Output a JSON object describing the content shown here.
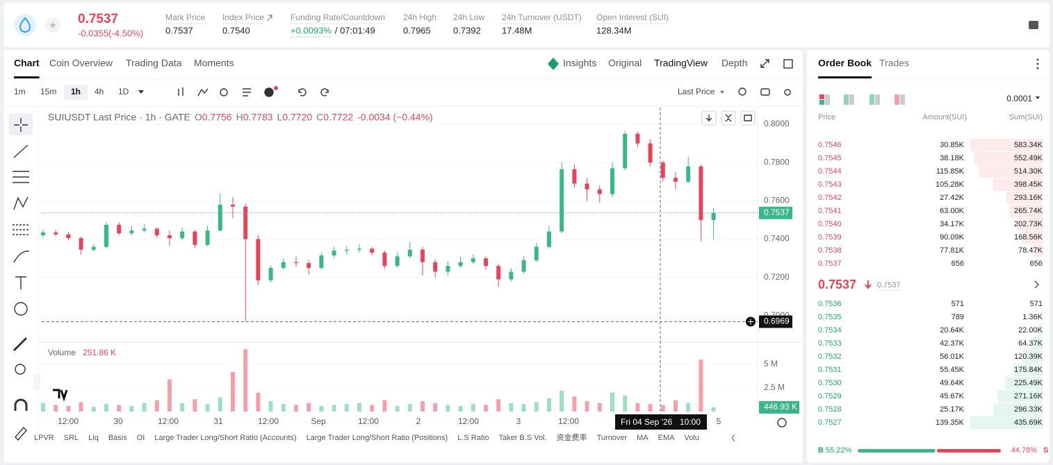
{
  "header": {
    "price": "0.7537",
    "change": "-0.0355(-4.50%)",
    "stats": [
      {
        "label": "Mark Price",
        "value": "0.7537"
      },
      {
        "label": "Index Price",
        "value": "0.7540"
      },
      {
        "label": "Funding Rate/Countdown",
        "value": "+0.0093%",
        "extra": "/ 07:01:49"
      },
      {
        "label": "24h High",
        "value": "0.7965"
      },
      {
        "label": "24h Low",
        "value": "0.7392"
      },
      {
        "label": "24h Turnover (USDT)",
        "value": "17.48M"
      },
      {
        "label": "Open Interest (SUI)",
        "value": "128.34M"
      }
    ]
  },
  "tabs": [
    "Chart",
    "Coin Overview",
    "Trading Data",
    "Moments"
  ],
  "view_tabs": [
    "Insights",
    "Original",
    "TradingView",
    "Depth"
  ],
  "intervals": [
    "1m",
    "15m",
    "1h",
    "4h",
    "1D"
  ],
  "price_type": "Last Price",
  "chart_data": {
    "type": "candlestick",
    "title": "SUIUSDT Last Price · 1h · GATE",
    "ohlc": [
      [
        "O",
        "0.7756"
      ],
      [
        "H",
        "0.7783"
      ],
      [
        "L",
        "0.7720"
      ],
      [
        "C",
        "0.7722"
      ]
    ],
    "ohlc_change": "-0.0034 (−0.44%)",
    "up_color": "#3bb58a",
    "down_color": "#e0475b",
    "open": [
      0.742,
      0.7435,
      0.7425,
      0.7405,
      0.7345,
      0.736,
      0.7475,
      0.743,
      0.7445,
      0.7455,
      0.742,
      0.7405,
      0.744,
      0.737,
      0.7445,
      0.758,
      0.757,
      0.74,
      0.7185,
      0.725,
      0.728,
      0.7275,
      0.725,
      0.7315,
      0.734,
      0.7345,
      0.735,
      0.733,
      0.726,
      0.731,
      0.7345,
      0.728,
      0.723,
      0.726,
      0.728,
      0.73,
      0.726,
      0.719,
      0.723,
      0.729,
      0.736,
      0.744,
      0.7765,
      0.769,
      0.766,
      0.7635,
      0.777,
      0.795,
      0.79,
      0.78,
      0.772,
      0.77,
      0.778,
      0.75
    ],
    "high": [
      0.745,
      0.7448,
      0.7438,
      0.7412,
      0.7375,
      0.749,
      0.7488,
      0.747,
      0.748,
      0.7462,
      0.7445,
      0.746,
      0.7448,
      0.747,
      0.764,
      0.762,
      0.7585,
      0.742,
      0.7262,
      0.73,
      0.731,
      0.729,
      0.733,
      0.736,
      0.7365,
      0.7375,
      0.736,
      0.734,
      0.733,
      0.7385,
      0.736,
      0.7295,
      0.7285,
      0.731,
      0.732,
      0.731,
      0.727,
      0.725,
      0.731,
      0.738,
      0.747,
      0.78,
      0.779,
      0.772,
      0.768,
      0.78,
      0.7965,
      0.796,
      0.792,
      0.781,
      0.775,
      0.783,
      0.779,
      0.756
    ],
    "low": [
      0.741,
      0.7415,
      0.7395,
      0.732,
      0.7335,
      0.7352,
      0.742,
      0.7418,
      0.7435,
      0.7405,
      0.7365,
      0.7395,
      0.7355,
      0.7362,
      0.744,
      0.751,
      0.6969,
      0.716,
      0.7175,
      0.724,
      0.7255,
      0.7215,
      0.724,
      0.73,
      0.732,
      0.733,
      0.7315,
      0.7245,
      0.725,
      0.73,
      0.721,
      0.72,
      0.721,
      0.725,
      0.727,
      0.724,
      0.715,
      0.718,
      0.722,
      0.728,
      0.735,
      0.743,
      0.767,
      0.76,
      0.759,
      0.762,
      0.776,
      0.788,
      0.778,
      0.77,
      0.766,
      0.769,
      0.739,
      0.74
    ],
    "close": [
      0.7435,
      0.7425,
      0.7405,
      0.7345,
      0.736,
      0.7475,
      0.743,
      0.7445,
      0.7455,
      0.742,
      0.7405,
      0.744,
      0.737,
      0.7445,
      0.758,
      0.757,
      0.74,
      0.7185,
      0.725,
      0.728,
      0.7275,
      0.725,
      0.7315,
      0.734,
      0.7345,
      0.735,
      0.733,
      0.726,
      0.731,
      0.7345,
      0.728,
      0.723,
      0.726,
      0.728,
      0.73,
      0.726,
      0.719,
      0.723,
      0.729,
      0.736,
      0.744,
      0.7765,
      0.769,
      0.766,
      0.7635,
      0.777,
      0.795,
      0.79,
      0.78,
      0.772,
      0.77,
      0.778,
      0.75,
      0.7537
    ],
    "ylim": [
      0.6873,
      0.8087
    ],
    "yticks": [
      {
        "value": 0.8,
        "label": "0.8000"
      },
      {
        "value": 0.78,
        "label": "0.7800"
      },
      {
        "value": 0.76,
        "label": "0.7600"
      },
      {
        "value": 0.74,
        "label": "0.7400"
      },
      {
        "value": 0.72,
        "label": "0.7200"
      },
      {
        "value": 0.7,
        "label": "0.7000"
      }
    ],
    "last_price": 0.7537,
    "crosshair_price": 0.6969,
    "crosshair_time": [
      "Fri 04 Sep '26",
      "10:00"
    ],
    "x_labels": [
      "12:00",
      "30",
      "12:00",
      "31",
      "12:00",
      "Sep",
      "12:00",
      "2",
      "12:00",
      "3",
      "12:00",
      null,
      null,
      "5"
    ],
    "volume_title": "Volume",
    "volume_header": "251.86 K",
    "volumes": [
      900000,
      700000,
      600000,
      1000000,
      500000,
      800000,
      700000,
      600000,
      900000,
      1200000,
      3400000,
      900000,
      1300000,
      800000,
      1500000,
      4200000,
      6600000,
      2000000,
      1100000,
      800000,
      700000,
      900000,
      600000,
      700000,
      800000,
      900000,
      700000,
      1200000,
      600000,
      800000,
      1100000,
      900000,
      700000,
      600000,
      800000,
      700000,
      1300000,
      900000,
      800000,
      1000000,
      1400000,
      2200000,
      1600000,
      1100000,
      900000,
      2000000,
      1700000,
      900000,
      800000,
      700000,
      1200000,
      900000,
      5500000,
      446930
    ],
    "volume_last_label": "446.93 K",
    "volume_ylim": [
      0,
      7200000
    ],
    "volume_yticks": [
      {
        "value": 5000000,
        "label": "5 M"
      },
      {
        "value": 2500000,
        "label": "2.5 M"
      }
    ]
  },
  "indicators": [
    "LPVR",
    "SRL",
    "Liq",
    "Basis",
    "OI",
    "Large Trader Long/Short Ratio (Accounts)",
    "Large Trader Long/Short Ratio (Positions)",
    "L.S Ratio",
    "Taker B.S Vol.",
    "资金费率",
    "Turnover",
    "MA",
    "EMA",
    "Volu"
  ],
  "order_book": {
    "tabs": [
      "Order Book",
      "Trades"
    ],
    "precision": "0.0001",
    "columns": [
      "Price",
      "Amount(SUI)",
      "Sum(SUI)"
    ],
    "asks": [
      {
        "price": "0.7546",
        "amount": "30.85K",
        "sum": {
          "value": 583340,
          "label": "583.34K"
        }
      },
      {
        "price": "0.7545",
        "amount": "38.18K",
        "sum": {
          "value": 552490,
          "label": "552.49K"
        }
      },
      {
        "price": "0.7544",
        "amount": "115.85K",
        "sum": {
          "value": 514300,
          "label": "514.30K"
        }
      },
      {
        "price": "0.7543",
        "amount": "105.28K",
        "sum": {
          "value": 398450,
          "label": "398.45K"
        }
      },
      {
        "price": "0.7542",
        "amount": "27.42K",
        "sum": {
          "value": 293160,
          "label": "293.16K"
        }
      },
      {
        "price": "0.7541",
        "amount": "63.00K",
        "sum": {
          "value": 265740,
          "label": "265.74K"
        }
      },
      {
        "price": "0.7540",
        "amount": "34.17K",
        "sum": {
          "value": 202730,
          "label": "202.73K"
        }
      },
      {
        "price": "0.7539",
        "amount": "90.09K",
        "sum": {
          "value": 168560,
          "label": "168.56K"
        }
      },
      {
        "price": "0.7538",
        "amount": "77.81K",
        "sum": {
          "value": 78470,
          "label": "78.47K"
        }
      },
      {
        "price": "0.7537",
        "amount": "656",
        "sum": 656
      }
    ],
    "mid_price": "0.7537",
    "mark_price": "0.7537",
    "bids": [
      {
        "price": "0.7536",
        "amount": "571",
        "sum": 571
      },
      {
        "price": "0.7535",
        "amount": "789",
        "sum": {
          "value": 1360,
          "label": "1.36K"
        }
      },
      {
        "price": "0.7534",
        "amount": "20.64K",
        "sum": {
          "value": 22000,
          "label": "22.00K"
        }
      },
      {
        "price": "0.7533",
        "amount": "42.37K",
        "sum": {
          "value": 64370,
          "label": "64.37K"
        }
      },
      {
        "price": "0.7532",
        "amount": "56.01K",
        "sum": {
          "value": 120390,
          "label": "120.39K"
        }
      },
      {
        "price": "0.7531",
        "amount": "55.45K",
        "sum": {
          "value": 175840,
          "label": "175.84K"
        }
      },
      {
        "price": "0.7530",
        "amount": "49.64K",
        "sum": {
          "value": 225490,
          "label": "225.49K"
        }
      },
      {
        "price": "0.7529",
        "amount": "45.67K",
        "sum": {
          "value": 271160,
          "label": "271.16K"
        }
      },
      {
        "price": "0.7528",
        "amount": "25.17K",
        "sum": {
          "value": 296330,
          "label": "296.33K"
        }
      },
      {
        "price": "0.7527",
        "amount": "139.35K",
        "sum": {
          "value": 435690,
          "label": "435.69K"
        }
      }
    ],
    "buy_label": "B",
    "sell_label": "S",
    "buy_ratio": {
      "value": 55.22,
      "label": "55.22%"
    },
    "sell_ratio": {
      "value": 44.78,
      "label": "44.78%"
    }
  }
}
